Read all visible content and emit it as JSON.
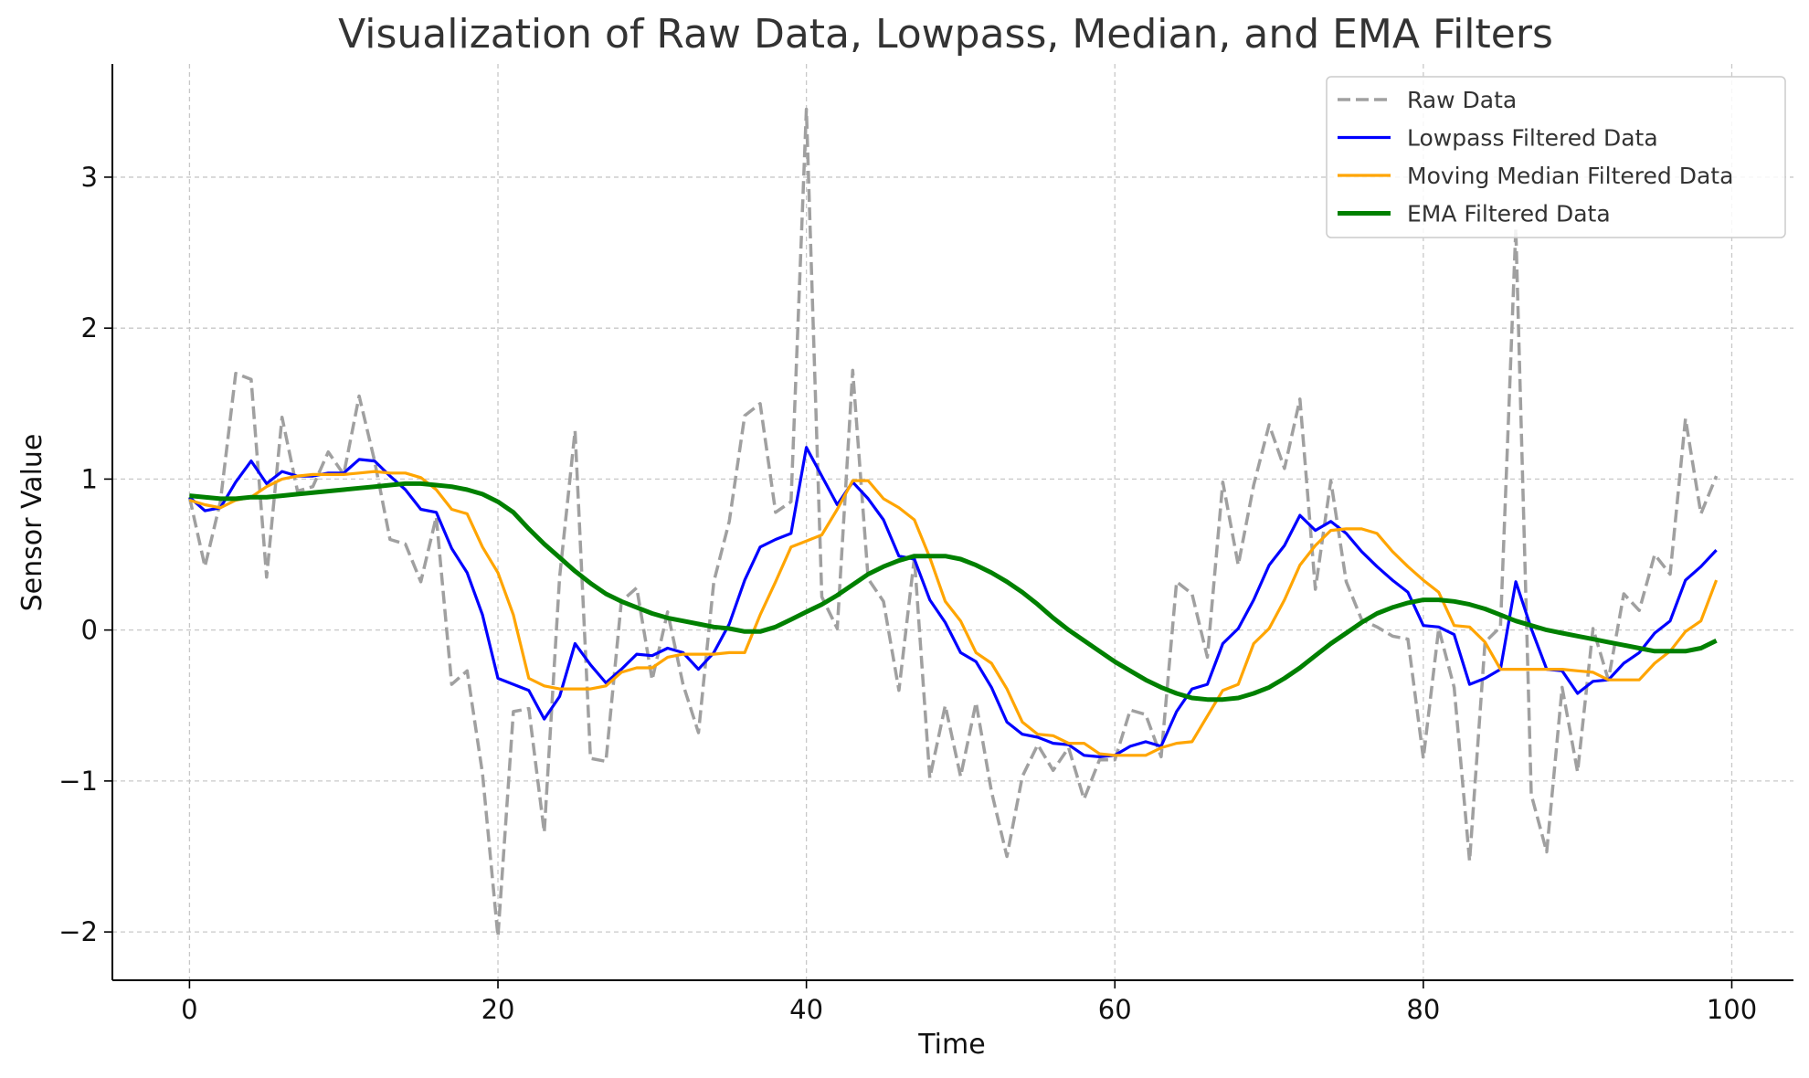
{
  "chart_data": {
    "type": "line",
    "title": "Visualization of Raw Data, Lowpass, Median, and EMA Filters",
    "xlabel": "Time",
    "ylabel": "Sensor Value",
    "xlim": [
      -5,
      104
    ],
    "ylim": [
      -2.32,
      3.75
    ],
    "xticks": [
      0,
      20,
      40,
      60,
      80,
      100
    ],
    "yticks": [
      -2,
      -1,
      0,
      1,
      2,
      3
    ],
    "xtick_labels": [
      "0",
      "20",
      "40",
      "60",
      "80",
      "100"
    ],
    "ytick_labels": [
      "−2",
      "−1",
      "0",
      "1",
      "2",
      "3"
    ],
    "grid": true,
    "legend_position": "top-right",
    "series": [
      {
        "name": "Raw Data",
        "color": "#a0a0a0",
        "style": "dashed",
        "x": [
          0,
          1,
          2,
          3,
          4,
          5,
          6,
          7,
          8,
          9,
          10,
          11,
          12,
          13,
          14,
          15,
          16,
          17,
          18,
          19,
          20,
          21,
          22,
          23,
          24,
          25,
          26,
          27,
          28,
          29,
          30,
          31,
          32,
          33,
          34,
          35,
          36,
          37,
          38,
          39,
          40,
          41,
          42,
          43,
          44,
          45,
          46,
          47,
          48,
          49,
          50,
          51,
          52,
          53,
          54,
          55,
          56,
          57,
          58,
          59,
          60,
          61,
          62,
          63,
          64,
          65,
          66,
          67,
          68,
          69,
          70,
          71,
          72,
          73,
          74,
          75,
          76,
          77,
          78,
          79,
          80,
          81,
          82,
          83,
          84,
          85,
          86,
          87,
          88,
          89,
          90,
          91,
          92,
          93,
          94,
          95,
          96,
          97,
          98,
          99
        ],
        "y": [
          0.88,
          0.42,
          0.85,
          1.7,
          1.66,
          0.35,
          1.41,
          0.92,
          0.95,
          1.18,
          1.03,
          1.55,
          1.12,
          0.6,
          0.57,
          0.32,
          0.75,
          -0.36,
          -0.27,
          -0.95,
          -2.03,
          -0.54,
          -0.52,
          -1.34,
          0.35,
          1.32,
          -0.85,
          -0.87,
          0.19,
          0.28,
          -0.33,
          0.12,
          -0.36,
          -0.68,
          0.32,
          0.72,
          1.42,
          1.5,
          0.78,
          0.85,
          3.45,
          0.22,
          0.01,
          1.72,
          0.34,
          0.19,
          -0.4,
          0.48,
          -0.98,
          -0.5,
          -0.97,
          -0.48,
          -1.07,
          -1.5,
          -0.97,
          -0.76,
          -0.93,
          -0.78,
          -1.12,
          -0.86,
          -0.86,
          -0.53,
          -0.56,
          -0.84,
          0.32,
          0.24,
          -0.18,
          0.98,
          0.43,
          0.96,
          1.36,
          1.07,
          1.53,
          0.27,
          0.99,
          0.32,
          0.07,
          0.02,
          -0.04,
          -0.06,
          -0.85,
          0.01,
          -0.38,
          -1.53,
          -0.08,
          0.02,
          2.66,
          -1.09,
          -1.47,
          -0.38,
          -0.94,
          0.01,
          -0.33,
          0.24,
          0.13,
          0.5,
          0.37,
          1.4,
          0.77,
          1.02
        ]
      },
      {
        "name": "Lowpass Filtered Data",
        "color": "#0000ff",
        "style": "solid",
        "x": [
          0,
          1,
          2,
          3,
          4,
          5,
          6,
          7,
          8,
          9,
          10,
          11,
          12,
          13,
          14,
          15,
          16,
          17,
          18,
          19,
          20,
          21,
          22,
          23,
          24,
          25,
          26,
          27,
          28,
          29,
          30,
          31,
          32,
          33,
          34,
          35,
          36,
          37,
          38,
          39,
          40,
          41,
          42,
          43,
          44,
          45,
          46,
          47,
          48,
          49,
          50,
          51,
          52,
          53,
          54,
          55,
          56,
          57,
          58,
          59,
          60,
          61,
          62,
          63,
          64,
          65,
          66,
          67,
          68,
          69,
          70,
          71,
          72,
          73,
          74,
          75,
          76,
          77,
          78,
          79,
          80,
          81,
          82,
          83,
          84,
          85,
          86,
          87,
          88,
          89,
          90,
          91,
          92,
          93,
          94,
          95,
          96,
          97,
          98,
          99
        ],
        "y": [
          0.88,
          0.79,
          0.81,
          0.98,
          1.12,
          0.97,
          1.05,
          1.02,
          1.02,
          1.04,
          1.04,
          1.13,
          1.12,
          1.02,
          0.93,
          0.8,
          0.78,
          0.54,
          0.38,
          0.1,
          -0.32,
          -0.36,
          -0.4,
          -0.59,
          -0.44,
          -0.09,
          -0.23,
          -0.35,
          -0.26,
          -0.16,
          -0.17,
          -0.12,
          -0.15,
          -0.26,
          -0.15,
          0.04,
          0.33,
          0.55,
          0.6,
          0.64,
          1.21,
          1.02,
          0.83,
          0.98,
          0.87,
          0.73,
          0.49,
          0.47,
          0.2,
          0.05,
          -0.15,
          -0.21,
          -0.38,
          -0.61,
          -0.69,
          -0.71,
          -0.75,
          -0.76,
          -0.83,
          -0.84,
          -0.83,
          -0.77,
          -0.74,
          -0.77,
          -0.54,
          -0.39,
          -0.36,
          -0.09,
          0.01,
          0.2,
          0.43,
          0.56,
          0.76,
          0.66,
          0.72,
          0.64,
          0.52,
          0.42,
          0.33,
          0.25,
          0.03,
          0.02,
          -0.03,
          -0.36,
          -0.32,
          -0.26,
          0.32,
          0.01,
          -0.26,
          -0.27,
          -0.42,
          -0.34,
          -0.33,
          -0.22,
          -0.15,
          -0.02,
          0.06,
          0.33,
          0.42,
          0.53
        ]
      },
      {
        "name": "Moving Median Filtered Data",
        "color": "#ffa500",
        "style": "solid",
        "x": [
          0,
          1,
          2,
          3,
          4,
          5,
          6,
          7,
          8,
          9,
          10,
          11,
          12,
          13,
          14,
          15,
          16,
          17,
          18,
          19,
          20,
          21,
          22,
          23,
          24,
          25,
          26,
          27,
          28,
          29,
          30,
          31,
          32,
          33,
          34,
          35,
          36,
          37,
          38,
          39,
          40,
          41,
          42,
          43,
          44,
          45,
          46,
          47,
          48,
          49,
          50,
          51,
          52,
          53,
          54,
          55,
          56,
          57,
          58,
          59,
          60,
          61,
          62,
          63,
          64,
          65,
          66,
          67,
          68,
          69,
          70,
          71,
          72,
          73,
          74,
          75,
          76,
          77,
          78,
          79,
          80,
          81,
          82,
          83,
          84,
          85,
          86,
          87,
          88,
          89,
          90,
          91,
          92,
          93,
          94,
          95,
          96,
          97,
          98,
          99
        ],
        "y": [
          0.86,
          0.83,
          0.81,
          0.86,
          0.88,
          0.95,
          1.0,
          1.02,
          1.03,
          1.03,
          1.03,
          1.04,
          1.05,
          1.04,
          1.04,
          1.01,
          0.93,
          0.8,
          0.77,
          0.55,
          0.38,
          0.1,
          -0.32,
          -0.37,
          -0.39,
          -0.39,
          -0.39,
          -0.37,
          -0.28,
          -0.25,
          -0.25,
          -0.18,
          -0.16,
          -0.16,
          -0.16,
          -0.15,
          -0.15,
          0.1,
          0.32,
          0.55,
          0.59,
          0.63,
          0.8,
          0.99,
          0.99,
          0.87,
          0.81,
          0.73,
          0.48,
          0.19,
          0.06,
          -0.15,
          -0.22,
          -0.39,
          -0.61,
          -0.69,
          -0.7,
          -0.75,
          -0.75,
          -0.82,
          -0.83,
          -0.83,
          -0.83,
          -0.78,
          -0.75,
          -0.74,
          -0.57,
          -0.4,
          -0.36,
          -0.09,
          0.01,
          0.2,
          0.43,
          0.56,
          0.66,
          0.67,
          0.67,
          0.64,
          0.52,
          0.42,
          0.33,
          0.25,
          0.03,
          0.02,
          -0.08,
          -0.26,
          -0.26,
          -0.26,
          -0.26,
          -0.26,
          -0.27,
          -0.28,
          -0.33,
          -0.33,
          -0.33,
          -0.22,
          -0.14,
          -0.01,
          0.06,
          0.33
        ]
      },
      {
        "name": "EMA Filtered Data",
        "color": "#008000",
        "style": "solid",
        "x": [
          0,
          1,
          2,
          3,
          4,
          5,
          6,
          7,
          8,
          9,
          10,
          11,
          12,
          13,
          14,
          15,
          16,
          17,
          18,
          19,
          20,
          21,
          22,
          23,
          24,
          25,
          26,
          27,
          28,
          29,
          30,
          31,
          32,
          33,
          34,
          35,
          36,
          37,
          38,
          39,
          40,
          41,
          42,
          43,
          44,
          45,
          46,
          47,
          48,
          49,
          50,
          51,
          52,
          53,
          54,
          55,
          56,
          57,
          58,
          59,
          60,
          61,
          62,
          63,
          64,
          65,
          66,
          67,
          68,
          69,
          70,
          71,
          72,
          73,
          74,
          75,
          76,
          77,
          78,
          79,
          80,
          81,
          82,
          83,
          84,
          85,
          86,
          87,
          88,
          89,
          90,
          91,
          92,
          93,
          94,
          95,
          96,
          97,
          98,
          99
        ],
        "y": [
          0.89,
          0.88,
          0.87,
          0.87,
          0.88,
          0.88,
          0.89,
          0.9,
          0.91,
          0.92,
          0.93,
          0.94,
          0.95,
          0.96,
          0.97,
          0.97,
          0.96,
          0.95,
          0.93,
          0.9,
          0.85,
          0.78,
          0.67,
          0.57,
          0.48,
          0.39,
          0.31,
          0.24,
          0.19,
          0.15,
          0.11,
          0.08,
          0.06,
          0.04,
          0.02,
          0.01,
          -0.01,
          -0.01,
          0.02,
          0.07,
          0.12,
          0.17,
          0.23,
          0.3,
          0.37,
          0.42,
          0.46,
          0.49,
          0.49,
          0.49,
          0.47,
          0.43,
          0.38,
          0.32,
          0.25,
          0.17,
          0.08,
          0.0,
          -0.07,
          -0.14,
          -0.21,
          -0.27,
          -0.33,
          -0.38,
          -0.42,
          -0.45,
          -0.46,
          -0.46,
          -0.45,
          -0.42,
          -0.38,
          -0.32,
          -0.25,
          -0.17,
          -0.09,
          -0.02,
          0.05,
          0.11,
          0.15,
          0.18,
          0.2,
          0.2,
          0.19,
          0.17,
          0.14,
          0.1,
          0.06,
          0.03,
          0.0,
          -0.02,
          -0.04,
          -0.06,
          -0.08,
          -0.1,
          -0.12,
          -0.14,
          -0.14,
          -0.14,
          -0.12,
          -0.07
        ]
      }
    ]
  }
}
